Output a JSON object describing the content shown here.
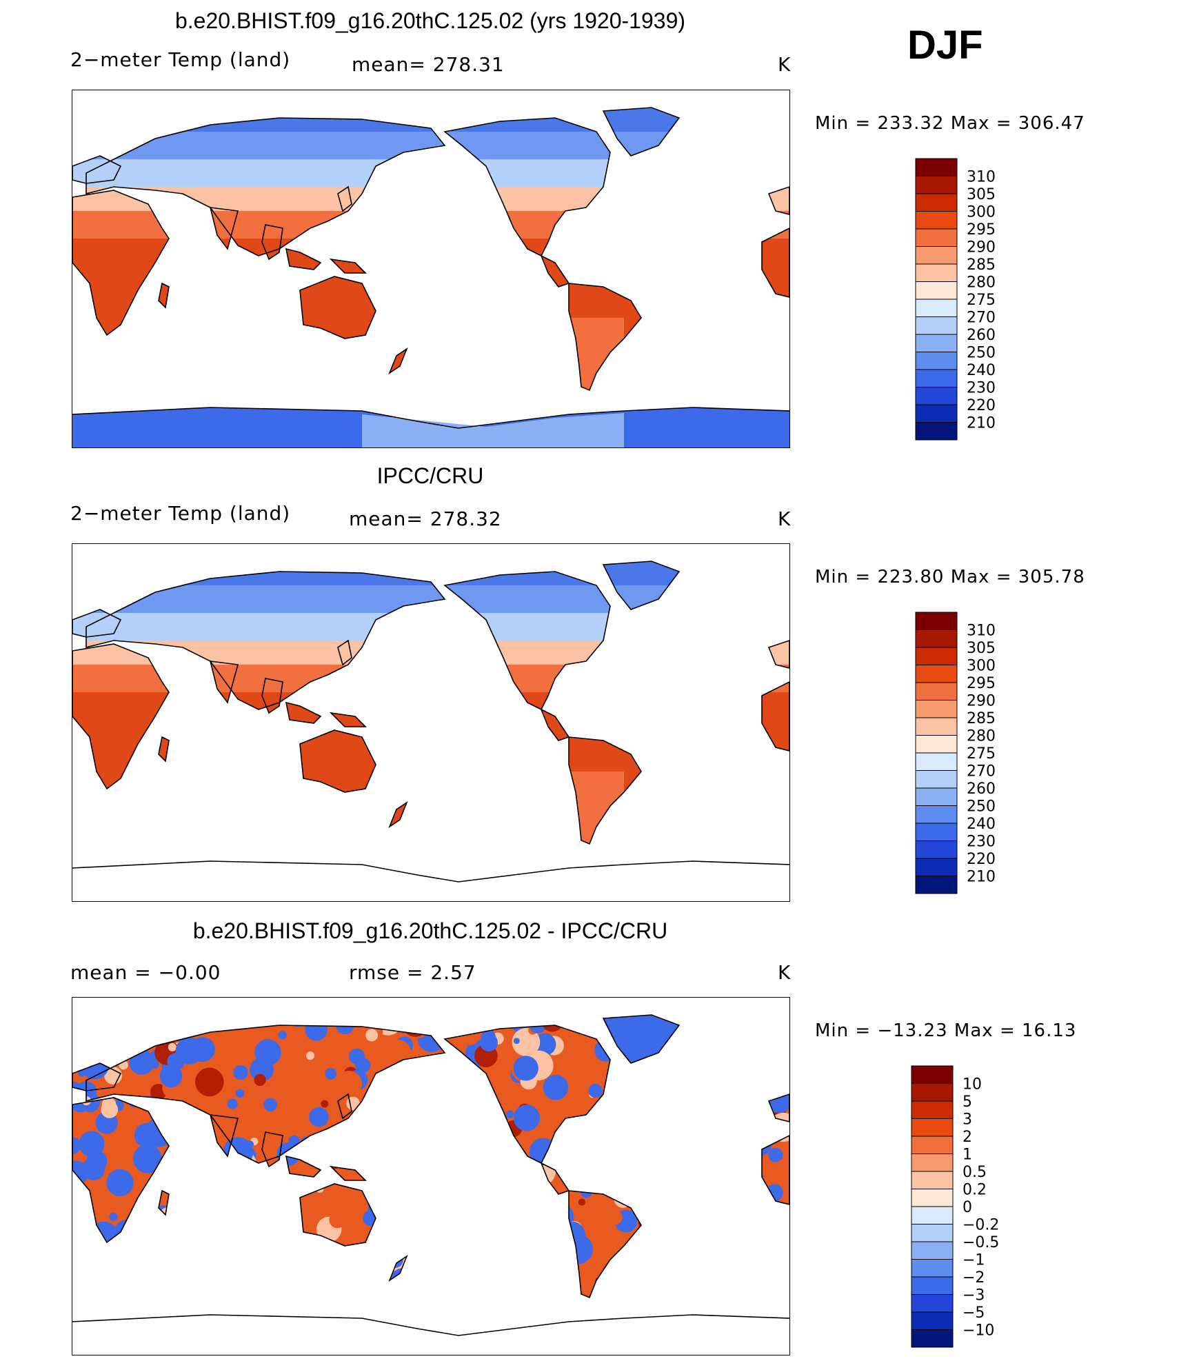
{
  "season": "DJF",
  "units": "K",
  "panels": [
    {
      "title": "b.e20.BHIST.f09_g16.20thC.125.02 (yrs 1920-1939)",
      "left_label": "2−meter Temp (land)",
      "center_label": "mean=  278.31",
      "right_label": "K",
      "minmax": "Min  =  233.32  Max  =  306.47",
      "palette": "absolute",
      "antarctica_filled": true
    },
    {
      "title": "IPCC/CRU",
      "left_label": "2−meter Temp (land)",
      "center_label": "mean=  278.32",
      "right_label": "K",
      "minmax": "Min  =  223.80  Max  =  305.78",
      "palette": "absolute",
      "antarctica_filled": false
    },
    {
      "title": "b.e20.BHIST.f09_g16.20thC.125.02 - IPCC/CRU",
      "left_label": "mean  =    −0.00",
      "center_label": "rmse  =     2.57",
      "right_label": "K",
      "minmax": "Min  =  −13.23  Max  =    16.13",
      "palette": "difference",
      "antarctica_filled": false
    }
  ],
  "colorbars": {
    "absolute": {
      "labels": [
        "310",
        "305",
        "300",
        "295",
        "290",
        "285",
        "280",
        "275",
        "270",
        "260",
        "250",
        "240",
        "230",
        "220",
        "210"
      ],
      "colors": [
        "#7b0000",
        "#a81800",
        "#cc2a00",
        "#e84a12",
        "#f27040",
        "#f79a6e",
        "#fbc3a3",
        "#fde7d6",
        "#d9ebfb",
        "#b4d0f8",
        "#8cb0f4",
        "#5f8cef",
        "#3d6ae9",
        "#2146d8",
        "#0d2cb5",
        "#02157a"
      ]
    },
    "difference": {
      "labels": [
        "10",
        "5",
        "3",
        "2",
        "1",
        "0.5",
        "0.2",
        "0",
        "−0.2",
        "−0.5",
        "−1",
        "−2",
        "−3",
        "−5",
        "−10"
      ],
      "colors": [
        "#7b0000",
        "#a81800",
        "#cc2a00",
        "#e84a12",
        "#f27040",
        "#f79a6e",
        "#fbc3a3",
        "#fde7d6",
        "#d9ebfb",
        "#b4d0f8",
        "#8cb0f4",
        "#5f8cef",
        "#3d6ae9",
        "#2146d8",
        "#0d2cb5",
        "#02157a"
      ]
    }
  },
  "map_colors": {
    "ocean": "#ffffff",
    "coast": "#000000",
    "arctic": "#4a78e8",
    "boreal": "#6f98f0",
    "temperate": "#b4d0f8",
    "warm_temperate": "#fbc3a3",
    "subtropical": "#f27040",
    "tropical": "#e04818",
    "antarctica": "#3d6ae9",
    "antarctica_edge": "#8cb0f4",
    "diff_warm": "#e85a20",
    "diff_hot": "#b02000",
    "diff_cold": "#3d6ae9",
    "diff_neutral": "#fbc3a3"
  }
}
